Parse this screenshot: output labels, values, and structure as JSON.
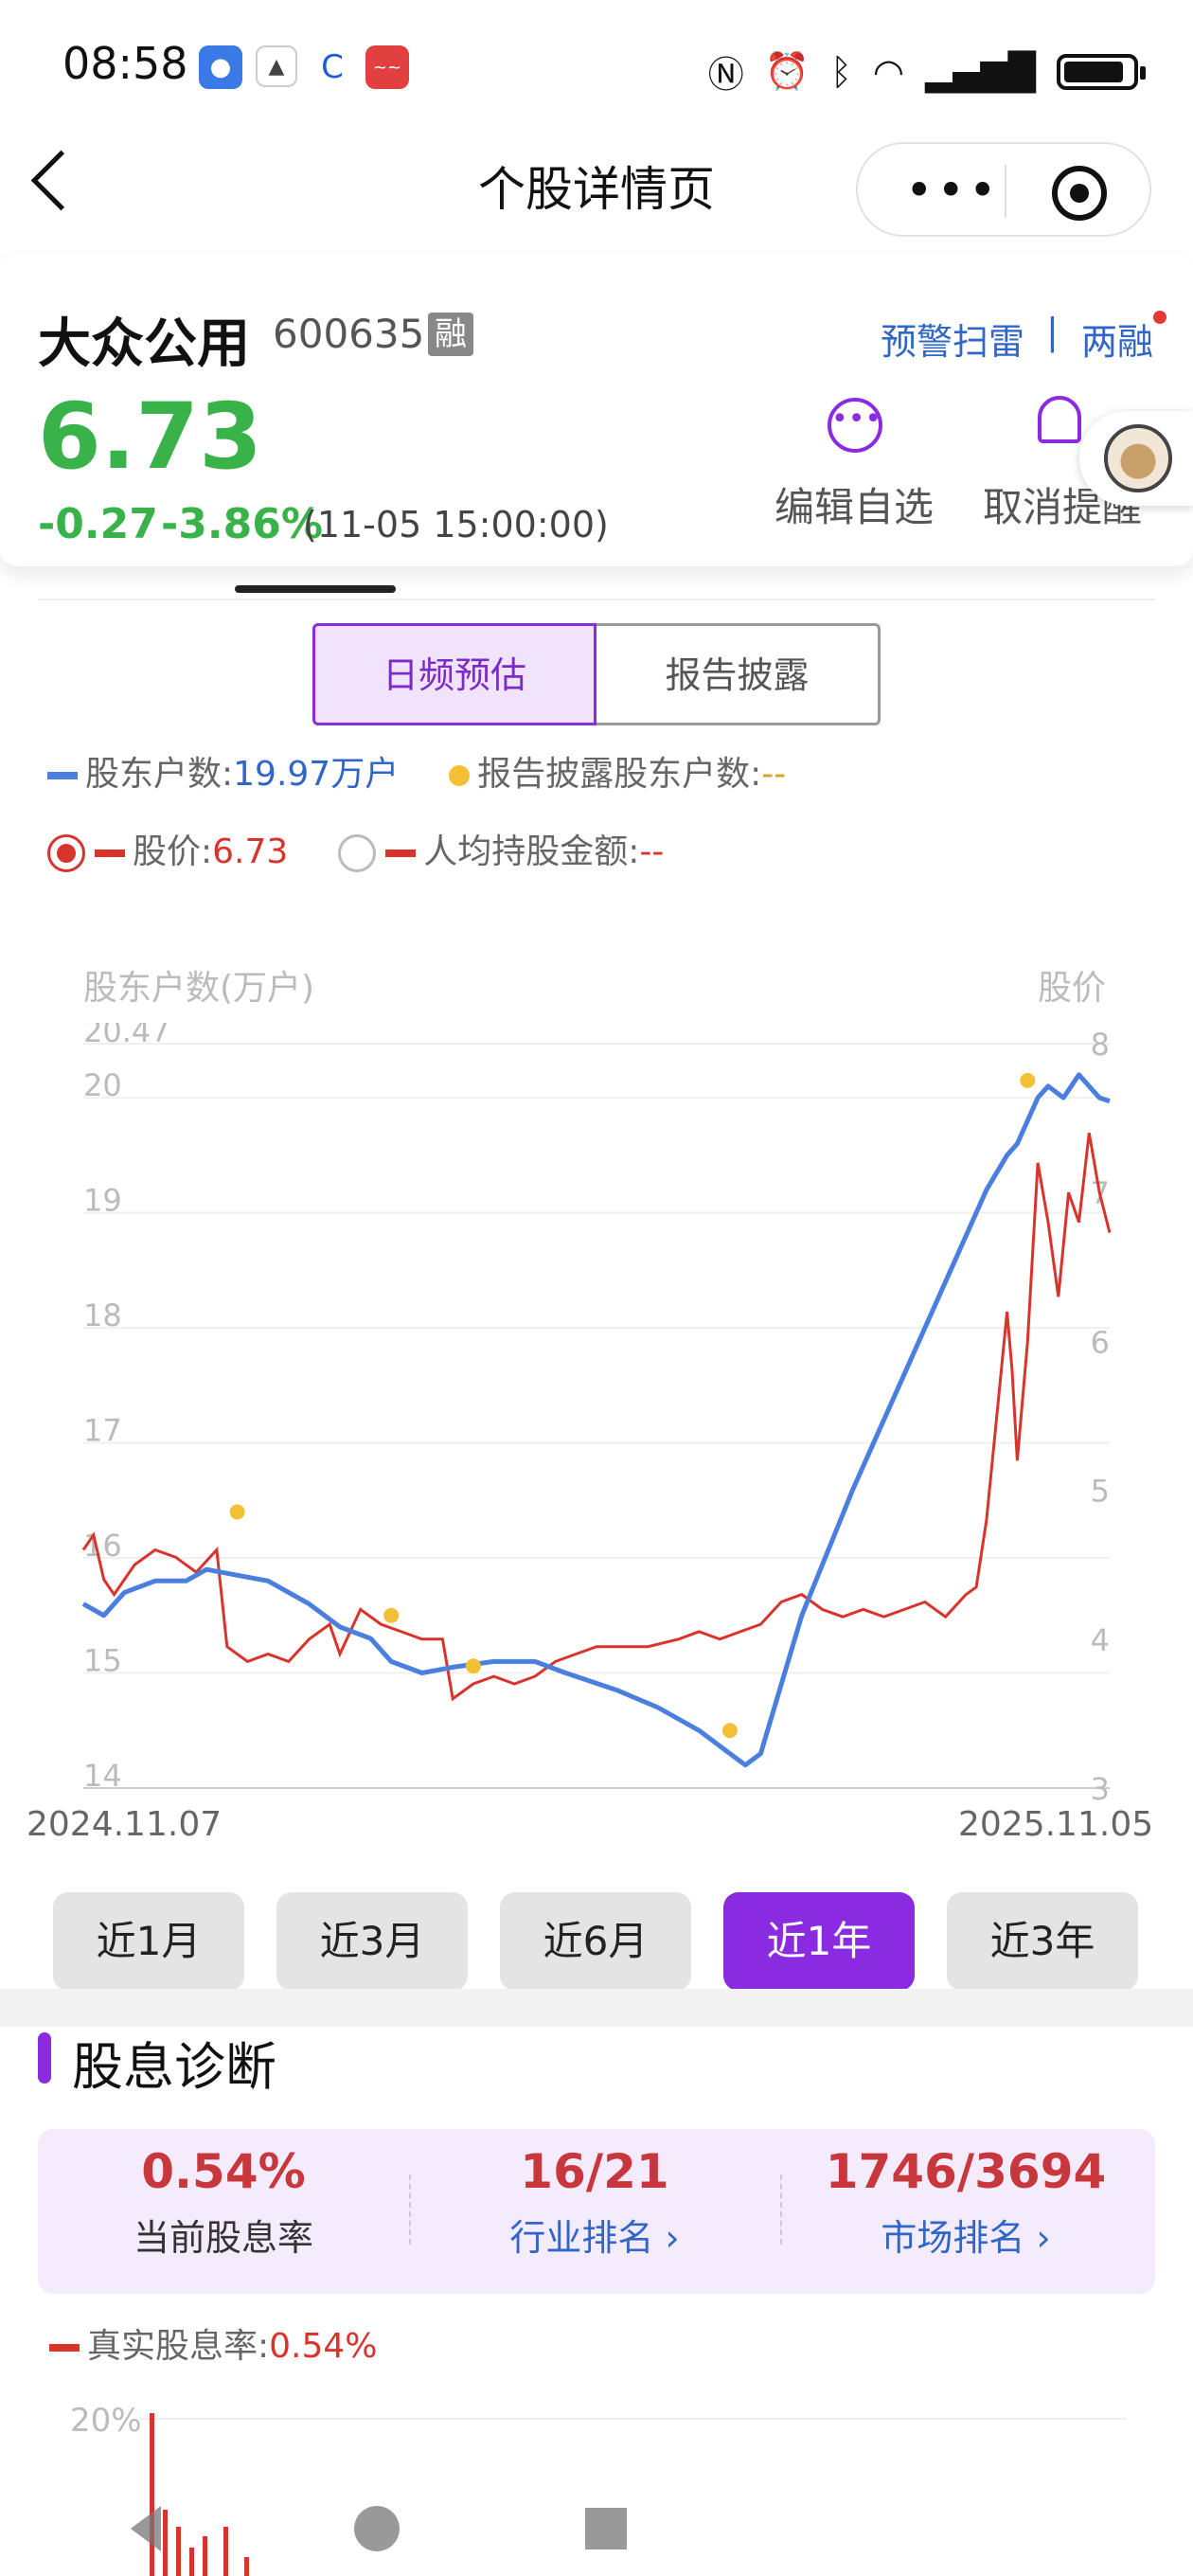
{
  "status_bar": {
    "time": "08:58",
    "icons": [
      "message-icon",
      "app-icon",
      "browser-icon",
      "stock-app-icon"
    ],
    "right_icons": [
      "nfc-icon",
      "alarm-icon",
      "bluetooth-icon",
      "wifi-icon",
      "signal-icon",
      "battery-icon"
    ]
  },
  "nav": {
    "title": "个股详情页"
  },
  "stock": {
    "name": "大众公用",
    "code": "600635",
    "margin_badge": "融",
    "alert_link": "预警扫雷",
    "separator": "|",
    "margin_link": "两融",
    "price": "6.73",
    "change": "-0.27",
    "change_pct": "-3.86%",
    "timestamp": "(11-05 15:00:00)",
    "edit_watchlist": "编辑自选",
    "cancel_reminder": "取消提醒",
    "colors": {
      "down": "#39b249",
      "accent": "#8a2be2"
    }
  },
  "tabs": {
    "daily": "日频预估",
    "report": "报告披露"
  },
  "legend": {
    "holders_label": "股东户数:",
    "holders_value": "19.97万户",
    "report_holders_label": "报告披露股东户数:",
    "report_holders_value": "--",
    "price_label": "股价:",
    "price_value": "6.73",
    "per_capita_label": "人均持股金额:",
    "per_capita_value": "--"
  },
  "chart_data": {
    "type": "line",
    "y_left_title": "股东户数(万户)",
    "y_right_title": "股价",
    "y_left_ticks": [
      "20.47",
      "20",
      "19",
      "18",
      "17",
      "16",
      "15",
      "14"
    ],
    "y_right_ticks": [
      "8",
      "7",
      "6",
      "5",
      "4",
      "3"
    ],
    "y_left_range": [
      14,
      20.47
    ],
    "y_right_range": [
      3,
      8
    ],
    "x_start": "2024.11.07",
    "x_end": "2025.11.05",
    "series": [
      {
        "name": "股东户数",
        "color": "#4a7fe0",
        "axis": "left",
        "points": [
          [
            0,
            15.6
          ],
          [
            0.02,
            15.5
          ],
          [
            0.04,
            15.7
          ],
          [
            0.07,
            15.8
          ],
          [
            0.1,
            15.8
          ],
          [
            0.12,
            15.9
          ],
          [
            0.15,
            15.85
          ],
          [
            0.18,
            15.8
          ],
          [
            0.22,
            15.6
          ],
          [
            0.25,
            15.4
          ],
          [
            0.28,
            15.3
          ],
          [
            0.3,
            15.1
          ],
          [
            0.33,
            15.0
          ],
          [
            0.36,
            15.05
          ],
          [
            0.4,
            15.1
          ],
          [
            0.44,
            15.1
          ],
          [
            0.47,
            15.0
          ],
          [
            0.52,
            14.85
          ],
          [
            0.56,
            14.7
          ],
          [
            0.6,
            14.5
          ],
          [
            0.63,
            14.3
          ],
          [
            0.645,
            14.2
          ],
          [
            0.66,
            14.3
          ],
          [
            0.7,
            15.5
          ],
          [
            0.75,
            16.6
          ],
          [
            0.8,
            17.6
          ],
          [
            0.85,
            18.6
          ],
          [
            0.88,
            19.2
          ],
          [
            0.9,
            19.5
          ],
          [
            0.91,
            19.6
          ],
          [
            0.93,
            20.0
          ],
          [
            0.94,
            20.1
          ],
          [
            0.955,
            20.0
          ],
          [
            0.97,
            20.2
          ],
          [
            0.98,
            20.1
          ],
          [
            0.99,
            20.0
          ],
          [
            1.0,
            19.97
          ]
        ]
      },
      {
        "name": "股价",
        "color": "#d9342b",
        "axis": "right",
        "points": [
          [
            0,
            4.6
          ],
          [
            0.01,
            4.7
          ],
          [
            0.02,
            4.4
          ],
          [
            0.03,
            4.3
          ],
          [
            0.05,
            4.5
          ],
          [
            0.07,
            4.6
          ],
          [
            0.09,
            4.55
          ],
          [
            0.11,
            4.45
          ],
          [
            0.13,
            4.6
          ],
          [
            0.14,
            3.95
          ],
          [
            0.16,
            3.85
          ],
          [
            0.18,
            3.9
          ],
          [
            0.2,
            3.85
          ],
          [
            0.22,
            4.0
          ],
          [
            0.24,
            4.1
          ],
          [
            0.25,
            3.9
          ],
          [
            0.27,
            4.2
          ],
          [
            0.29,
            4.1
          ],
          [
            0.31,
            4.05
          ],
          [
            0.33,
            4.0
          ],
          [
            0.35,
            4.0
          ],
          [
            0.36,
            3.6
          ],
          [
            0.38,
            3.7
          ],
          [
            0.4,
            3.75
          ],
          [
            0.42,
            3.7
          ],
          [
            0.44,
            3.75
          ],
          [
            0.46,
            3.85
          ],
          [
            0.48,
            3.9
          ],
          [
            0.5,
            3.95
          ],
          [
            0.52,
            3.95
          ],
          [
            0.55,
            3.95
          ],
          [
            0.58,
            4.0
          ],
          [
            0.6,
            4.05
          ],
          [
            0.62,
            4.0
          ],
          [
            0.64,
            4.05
          ],
          [
            0.66,
            4.1
          ],
          [
            0.68,
            4.25
          ],
          [
            0.7,
            4.3
          ],
          [
            0.72,
            4.2
          ],
          [
            0.74,
            4.15
          ],
          [
            0.76,
            4.2
          ],
          [
            0.78,
            4.15
          ],
          [
            0.8,
            4.2
          ],
          [
            0.82,
            4.25
          ],
          [
            0.84,
            4.15
          ],
          [
            0.86,
            4.3
          ],
          [
            0.87,
            4.35
          ],
          [
            0.88,
            4.8
          ],
          [
            0.89,
            5.5
          ],
          [
            0.9,
            6.2
          ],
          [
            0.905,
            5.8
          ],
          [
            0.91,
            5.2
          ],
          [
            0.92,
            6.0
          ],
          [
            0.93,
            7.2
          ],
          [
            0.94,
            6.8
          ],
          [
            0.95,
            6.3
          ],
          [
            0.96,
            7.0
          ],
          [
            0.97,
            6.8
          ],
          [
            0.98,
            7.4
          ],
          [
            0.99,
            7.0
          ],
          [
            1.0,
            6.73
          ]
        ]
      }
    ],
    "report_points": [
      [
        0.15,
        16.4
      ],
      [
        0.3,
        15.5
      ],
      [
        0.38,
        15.06
      ],
      [
        0.63,
        14.5
      ],
      [
        0.92,
        20.15
      ]
    ]
  },
  "periods": [
    "近1月",
    "近3月",
    "近6月",
    "近1年",
    "近3年"
  ],
  "active_period": "近1年",
  "dividend": {
    "section_title": "股息诊断",
    "current_rate": "0.54%",
    "current_rate_label": "当前股息率",
    "industry_rank": "16/21",
    "industry_rank_label": "行业排名",
    "market_rank": "1746/3694",
    "market_rank_label": "市场排名",
    "real_rate_label": "真实股息率:",
    "real_rate_value": "0.54%",
    "chart_tick": "20%"
  }
}
